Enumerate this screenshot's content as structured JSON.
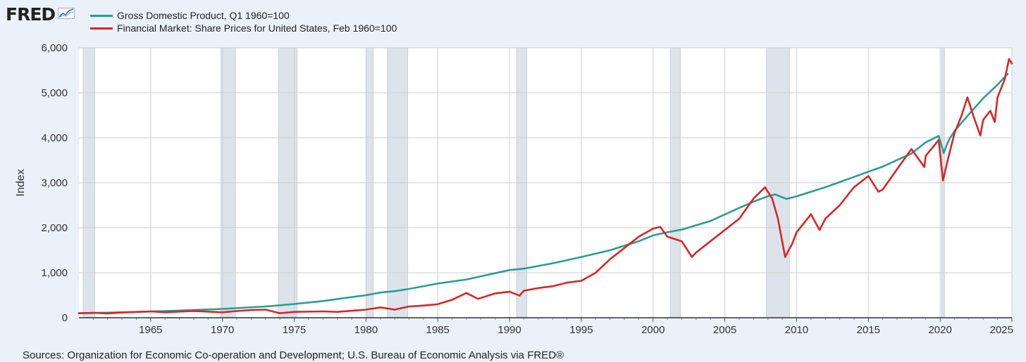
{
  "logo": {
    "text": "FRED",
    "mark_icon": "line-chart-icon"
  },
  "colors": {
    "gdp": "#2a9d8f",
    "shares": "#d62728",
    "recession": "#dde3ea",
    "grid": "#cfcfcf",
    "background": "#eaf1f8"
  },
  "chart_data": {
    "type": "line",
    "title": "",
    "xlabel": "",
    "ylabel": "Index",
    "xlim": [
      1960.0,
      2025.0
    ],
    "ylim": [
      0,
      6000
    ],
    "y_ticks": [
      0,
      1000,
      2000,
      3000,
      4000,
      5000,
      6000
    ],
    "y_tick_labels": [
      "0",
      "1,000",
      "2,000",
      "3,000",
      "4,000",
      "5,000",
      "6,000"
    ],
    "x_ticks": [
      1965,
      1970,
      1975,
      1980,
      1985,
      1990,
      1995,
      2000,
      2005,
      2010,
      2015,
      2020,
      2025
    ],
    "x_tick_labels": [
      "1965",
      "1970",
      "1975",
      "1980",
      "1985",
      "1990",
      "1995",
      "2000",
      "2005",
      "2010",
      "2015",
      "2020",
      "2025"
    ],
    "grid": true,
    "recessions": [
      [
        1960.3,
        1961.1
      ],
      [
        1969.9,
        1970.9
      ],
      [
        1973.9,
        1975.2
      ],
      [
        1980.0,
        1980.5
      ],
      [
        1981.5,
        1982.9
      ],
      [
        1990.5,
        1991.2
      ],
      [
        2001.2,
        2001.9
      ],
      [
        2007.9,
        2009.5
      ],
      [
        2020.1,
        2020.3
      ]
    ],
    "series": [
      {
        "name": "Gross Domestic Product, Q1 1960=100",
        "color": "#2a9d8f",
        "points": [
          [
            1960.0,
            100
          ],
          [
            1962,
            112
          ],
          [
            1965,
            138
          ],
          [
            1968,
            170
          ],
          [
            1970,
            195
          ],
          [
            1973,
            250
          ],
          [
            1975,
            305
          ],
          [
            1977,
            370
          ],
          [
            1979,
            460
          ],
          [
            1980,
            500
          ],
          [
            1981,
            560
          ],
          [
            1982,
            590
          ],
          [
            1983,
            640
          ],
          [
            1985,
            760
          ],
          [
            1987,
            850
          ],
          [
            1989,
            990
          ],
          [
            1990,
            1060
          ],
          [
            1991,
            1090
          ],
          [
            1993,
            1210
          ],
          [
            1995,
            1350
          ],
          [
            1997,
            1500
          ],
          [
            1999,
            1700
          ],
          [
            2000,
            1830
          ],
          [
            2001,
            1900
          ],
          [
            2002,
            1960
          ],
          [
            2004,
            2150
          ],
          [
            2006,
            2440
          ],
          [
            2007,
            2580
          ],
          [
            2008,
            2700
          ],
          [
            2008.5,
            2740
          ],
          [
            2009.3,
            2640
          ],
          [
            2010,
            2700
          ],
          [
            2012,
            2900
          ],
          [
            2014,
            3130
          ],
          [
            2016,
            3360
          ],
          [
            2018,
            3650
          ],
          [
            2019,
            3900
          ],
          [
            2019.9,
            4040
          ],
          [
            2020.25,
            3660
          ],
          [
            2020.6,
            3950
          ],
          [
            2021,
            4150
          ],
          [
            2022,
            4520
          ],
          [
            2023,
            4880
          ],
          [
            2024,
            5180
          ],
          [
            2024.7,
            5420
          ]
        ]
      },
      {
        "name": "Financial Market: Share Prices for United States, Feb 1960=100",
        "color": "#d62728",
        "points": [
          [
            1960.0,
            100
          ],
          [
            1961,
            110
          ],
          [
            1962,
            95
          ],
          [
            1963,
            115
          ],
          [
            1965,
            140
          ],
          [
            1966,
            120
          ],
          [
            1968,
            150
          ],
          [
            1970,
            120
          ],
          [
            1971,
            150
          ],
          [
            1972,
            170
          ],
          [
            1973,
            180
          ],
          [
            1974,
            100
          ],
          [
            1975,
            130
          ],
          [
            1977,
            140
          ],
          [
            1978,
            130
          ],
          [
            1980,
            180
          ],
          [
            1981,
            230
          ],
          [
            1982,
            180
          ],
          [
            1983,
            250
          ],
          [
            1984,
            270
          ],
          [
            1985,
            300
          ],
          [
            1986,
            400
          ],
          [
            1987,
            550
          ],
          [
            1987.8,
            420
          ],
          [
            1988,
            440
          ],
          [
            1989,
            540
          ],
          [
            1990,
            580
          ],
          [
            1990.7,
            490
          ],
          [
            1991,
            600
          ],
          [
            1992,
            660
          ],
          [
            1993,
            700
          ],
          [
            1994,
            780
          ],
          [
            1995,
            820
          ],
          [
            1996,
            1000
          ],
          [
            1997,
            1300
          ],
          [
            1998,
            1550
          ],
          [
            1999,
            1800
          ],
          [
            2000,
            1980
          ],
          [
            2000.5,
            2020
          ],
          [
            2001,
            1800
          ],
          [
            2002,
            1700
          ],
          [
            2002.7,
            1350
          ],
          [
            2003,
            1450
          ],
          [
            2004,
            1700
          ],
          [
            2005,
            1950
          ],
          [
            2006,
            2200
          ],
          [
            2007,
            2650
          ],
          [
            2007.8,
            2900
          ],
          [
            2008.3,
            2650
          ],
          [
            2008.7,
            2200
          ],
          [
            2009.2,
            1350
          ],
          [
            2009.7,
            1650
          ],
          [
            2010,
            1900
          ],
          [
            2011,
            2300
          ],
          [
            2011.6,
            1950
          ],
          [
            2012,
            2200
          ],
          [
            2013,
            2500
          ],
          [
            2014,
            2900
          ],
          [
            2015,
            3150
          ],
          [
            2015.7,
            2800
          ],
          [
            2016,
            2850
          ],
          [
            2017,
            3300
          ],
          [
            2018,
            3750
          ],
          [
            2018.9,
            3350
          ],
          [
            2019,
            3600
          ],
          [
            2019.9,
            3950
          ],
          [
            2020.2,
            3050
          ],
          [
            2020.6,
            3600
          ],
          [
            2021,
            4100
          ],
          [
            2021.5,
            4500
          ],
          [
            2021.9,
            4900
          ],
          [
            2022.3,
            4500
          ],
          [
            2022.8,
            4050
          ],
          [
            2023,
            4400
          ],
          [
            2023.5,
            4600
          ],
          [
            2023.8,
            4350
          ],
          [
            2024,
            4900
          ],
          [
            2024.5,
            5300
          ],
          [
            2024.8,
            5750
          ],
          [
            2025.0,
            5650
          ]
        ]
      }
    ]
  },
  "legend": {
    "items": [
      {
        "label": "Gross Domestic Product, Q1 1960=100",
        "color": "#2a9d8f"
      },
      {
        "label": "Financial Market: Share Prices for United States, Feb 1960=100",
        "color": "#d62728"
      }
    ]
  },
  "footer": {
    "sources": "Sources: Organization for Economic Co-operation and Development; U.S. Bureau of Economic Analysis via FRED®"
  }
}
